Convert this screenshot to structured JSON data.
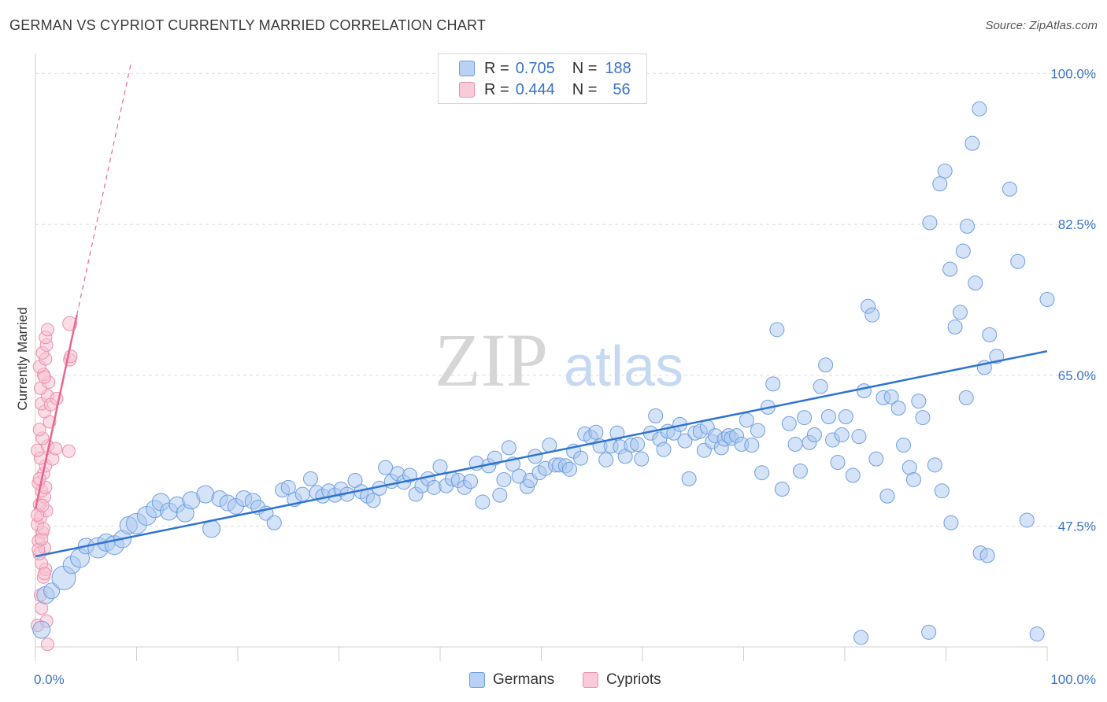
{
  "header": {
    "title": "GERMAN VS CYPRIOT CURRENTLY MARRIED CORRELATION CHART",
    "source": "Source: ZipAtlas.com"
  },
  "watermark": {
    "part1": "ZIP",
    "part2": "atlas"
  },
  "legend_top": {
    "rows": [
      {
        "r_label": "R =",
        "r_value": "0.705",
        "n_label": "N =",
        "n_value": "188"
      },
      {
        "r_label": "R =",
        "r_value": "0.444",
        "n_label": "N =",
        "n_value": "56"
      }
    ]
  },
  "legend_bottom": {
    "germans": "Germans",
    "cypriots": "Cypriots"
  },
  "colors": {
    "blue_fill": "#a9c8f0",
    "blue_stroke": "#6f9fe0",
    "blue_line": "#2f74d0",
    "pink_fill": "#f8c1d2",
    "pink_stroke": "#ec8eab",
    "pink_line": "#e7678f",
    "axis_label": "#3a74c9"
  },
  "chart_data": {
    "type": "scatter",
    "title": "GERMAN VS CYPRIOT CURRENTLY MARRIED CORRELATION CHART",
    "xlabel": "",
    "ylabel": "Currently Married",
    "xlim": [
      0,
      100
    ],
    "ylim": [
      33.5,
      101.5
    ],
    "x_tick_labels": [
      "0.0%",
      "100.0%"
    ],
    "y_ticks": [
      47.5,
      65.0,
      82.5,
      100.0
    ],
    "y_tick_labels": [
      "47.5%",
      "65.0%",
      "82.5%",
      "100.0%"
    ],
    "grid": true,
    "series": [
      {
        "name": "Germans",
        "R": 0.705,
        "N": 188,
        "trend": {
          "x": [
            0,
            100
          ],
          "y": [
            44.0,
            67.8
          ]
        },
        "points": [
          [
            0.6,
            35.5,
            11
          ],
          [
            1.0,
            39.5,
            11
          ],
          [
            1.6,
            40.0,
            10
          ],
          [
            2.8,
            41.5,
            15
          ],
          [
            3.6,
            43.0,
            11
          ],
          [
            4.4,
            43.8,
            12
          ],
          [
            5.0,
            45.2,
            10
          ],
          [
            6.2,
            45.0,
            13
          ],
          [
            7.0,
            45.6,
            11
          ],
          [
            7.8,
            45.3,
            12
          ],
          [
            8.6,
            46.0,
            11
          ],
          [
            9.2,
            47.6,
            11
          ],
          [
            10.0,
            47.8,
            13
          ],
          [
            11.0,
            48.7,
            12
          ],
          [
            11.8,
            49.5,
            11
          ],
          [
            12.4,
            50.3,
            11
          ],
          [
            13.2,
            49.2,
            11
          ],
          [
            14.0,
            50.0,
            10
          ],
          [
            14.8,
            49.0,
            11
          ],
          [
            15.4,
            50.5,
            11
          ],
          [
            16.8,
            51.2,
            11
          ],
          [
            17.4,
            47.2,
            11
          ],
          [
            18.2,
            50.7,
            10
          ],
          [
            19.0,
            50.2,
            10
          ],
          [
            19.8,
            49.8,
            10
          ],
          [
            20.6,
            50.7,
            10
          ],
          [
            21.5,
            50.4,
            10
          ],
          [
            22.0,
            49.7,
            9
          ],
          [
            22.8,
            49.0,
            9
          ],
          [
            23.6,
            47.9,
            9
          ],
          [
            24.4,
            51.7,
            9
          ],
          [
            25.0,
            52.0,
            9
          ],
          [
            25.6,
            50.6,
            9
          ],
          [
            26.4,
            51.2,
            9
          ],
          [
            27.2,
            53.0,
            9
          ],
          [
            27.8,
            51.4,
            9
          ],
          [
            28.4,
            51.0,
            9
          ],
          [
            29.0,
            51.6,
            9
          ],
          [
            29.6,
            51.1,
            9
          ],
          [
            30.2,
            51.8,
            9
          ],
          [
            30.8,
            51.2,
            9
          ],
          [
            31.6,
            52.8,
            9
          ],
          [
            32.2,
            51.5,
            9
          ],
          [
            32.8,
            51.0,
            9
          ],
          [
            33.4,
            50.5,
            9
          ],
          [
            34.0,
            51.9,
            9
          ],
          [
            34.6,
            54.3,
            9
          ],
          [
            35.2,
            52.7,
            9
          ],
          [
            35.8,
            53.6,
            9
          ],
          [
            36.4,
            52.6,
            9
          ],
          [
            37.0,
            53.4,
            9
          ],
          [
            37.6,
            51.2,
            9
          ],
          [
            38.2,
            52.2,
            9
          ],
          [
            38.8,
            53.0,
            9
          ],
          [
            39.4,
            52.0,
            9
          ],
          [
            40.0,
            54.4,
            9
          ],
          [
            40.6,
            52.2,
            9
          ],
          [
            41.2,
            53.0,
            9
          ],
          [
            41.8,
            52.8,
            9
          ],
          [
            42.4,
            52.0,
            9
          ],
          [
            43.0,
            52.7,
            9
          ],
          [
            43.6,
            54.8,
            9
          ],
          [
            44.2,
            50.3,
            9
          ],
          [
            44.8,
            54.5,
            9
          ],
          [
            45.4,
            55.4,
            9
          ],
          [
            45.9,
            51.1,
            9
          ],
          [
            46.3,
            52.9,
            9
          ],
          [
            46.8,
            56.6,
            9
          ],
          [
            47.2,
            54.7,
            9
          ],
          [
            47.8,
            53.3,
            9
          ],
          [
            48.6,
            52.1,
            9
          ],
          [
            48.9,
            52.8,
            9
          ],
          [
            49.4,
            55.6,
            9
          ],
          [
            49.8,
            53.7,
            9
          ],
          [
            50.4,
            54.2,
            9
          ],
          [
            50.8,
            56.9,
            9
          ],
          [
            51.4,
            54.6,
            9
          ],
          [
            51.8,
            54.6,
            9
          ],
          [
            52.4,
            54.5,
            9
          ],
          [
            52.8,
            54.1,
            9
          ],
          [
            53.2,
            56.2,
            9
          ],
          [
            53.9,
            55.4,
            9
          ],
          [
            54.3,
            58.2,
            9
          ],
          [
            54.9,
            57.8,
            9
          ],
          [
            55.4,
            58.4,
            9
          ],
          [
            55.8,
            56.8,
            9
          ],
          [
            56.4,
            55.2,
            9
          ],
          [
            56.9,
            56.8,
            9
          ],
          [
            57.5,
            58.3,
            9
          ],
          [
            57.8,
            56.7,
            9
          ],
          [
            58.3,
            55.6,
            9
          ],
          [
            58.9,
            56.9,
            9
          ],
          [
            59.5,
            57.0,
            9
          ],
          [
            59.9,
            55.3,
            9
          ],
          [
            60.8,
            58.3,
            9
          ],
          [
            61.3,
            60.3,
            9
          ],
          [
            61.7,
            57.6,
            9
          ],
          [
            62.1,
            56.4,
            9
          ],
          [
            62.5,
            58.5,
            9
          ],
          [
            63.1,
            58.3,
            9
          ],
          [
            63.7,
            59.3,
            9
          ],
          [
            64.2,
            57.4,
            9
          ],
          [
            64.6,
            53.0,
            9
          ],
          [
            65.2,
            58.3,
            9
          ],
          [
            65.7,
            58.5,
            9
          ],
          [
            66.1,
            56.3,
            9
          ],
          [
            66.4,
            59.0,
            9
          ],
          [
            66.9,
            57.3,
            9
          ],
          [
            67.2,
            58.0,
            9
          ],
          [
            67.8,
            56.6,
            9
          ],
          [
            68.1,
            57.6,
            9
          ],
          [
            68.5,
            58.0,
            9
          ],
          [
            68.8,
            57.7,
            9
          ],
          [
            69.3,
            58.0,
            9
          ],
          [
            69.8,
            57.0,
            9
          ],
          [
            70.3,
            59.8,
            9
          ],
          [
            70.8,
            56.9,
            9
          ],
          [
            71.4,
            58.6,
            9
          ],
          [
            71.8,
            53.7,
            9
          ],
          [
            72.4,
            61.3,
            9
          ],
          [
            72.9,
            64.0,
            9
          ],
          [
            73.3,
            70.3,
            9
          ],
          [
            73.8,
            51.8,
            9
          ],
          [
            74.5,
            59.4,
            9
          ],
          [
            75.1,
            57.0,
            9
          ],
          [
            75.6,
            53.9,
            9
          ],
          [
            76.0,
            60.1,
            9
          ],
          [
            76.5,
            57.2,
            9
          ],
          [
            77.0,
            58.1,
            9
          ],
          [
            77.6,
            63.7,
            9
          ],
          [
            78.1,
            66.2,
            9
          ],
          [
            78.4,
            60.2,
            9
          ],
          [
            78.8,
            57.5,
            9
          ],
          [
            79.3,
            54.9,
            9
          ],
          [
            79.7,
            58.1,
            9
          ],
          [
            80.1,
            60.2,
            9
          ],
          [
            80.8,
            53.4,
            9
          ],
          [
            81.4,
            57.9,
            9
          ],
          [
            81.9,
            63.2,
            9
          ],
          [
            82.3,
            73.0,
            9
          ],
          [
            82.7,
            72.0,
            9
          ],
          [
            83.1,
            55.3,
            9
          ],
          [
            83.8,
            62.4,
            9
          ],
          [
            84.2,
            51.0,
            9
          ],
          [
            84.6,
            62.5,
            9
          ],
          [
            85.3,
            61.2,
            9
          ],
          [
            85.8,
            56.9,
            9
          ],
          [
            86.4,
            54.3,
            9
          ],
          [
            86.8,
            52.9,
            9
          ],
          [
            87.3,
            62.0,
            9
          ],
          [
            87.7,
            60.1,
            9
          ],
          [
            88.4,
            82.7,
            9
          ],
          [
            88.9,
            54.6,
            9
          ],
          [
            89.4,
            87.2,
            9
          ],
          [
            89.9,
            88.7,
            9
          ],
          [
            90.4,
            77.3,
            9
          ],
          [
            90.9,
            70.6,
            9
          ],
          [
            91.4,
            72.3,
            9
          ],
          [
            91.7,
            79.4,
            9
          ],
          [
            92.1,
            82.3,
            9
          ],
          [
            92.6,
            91.9,
            9
          ],
          [
            92.9,
            75.7,
            9
          ],
          [
            93.3,
            95.9,
            9
          ],
          [
            93.8,
            65.9,
            9
          ],
          [
            94.3,
            69.7,
            9
          ],
          [
            95.0,
            67.2,
            9
          ],
          [
            96.3,
            86.6,
            9
          ],
          [
            97.1,
            78.2,
            9
          ],
          [
            98.0,
            48.2,
            9
          ],
          [
            99.0,
            35.0,
            9
          ],
          [
            100.0,
            73.8,
            9
          ],
          [
            93.4,
            44.4,
            9
          ],
          [
            94.1,
            44.1,
            9
          ],
          [
            81.6,
            34.6,
            9
          ],
          [
            88.3,
            35.2,
            9
          ],
          [
            90.5,
            47.9,
            9
          ],
          [
            89.6,
            51.6,
            9
          ],
          [
            92.0,
            62.4,
            9
          ]
        ]
      },
      {
        "name": "Cypriots",
        "R": 0.444,
        "N": 56,
        "trend": {
          "x": [
            0,
            4.1
          ],
          "y": [
            49.5,
            72.0
          ]
        },
        "trend_extension": {
          "x": [
            4.1,
            9.5
          ],
          "y": [
            72.0,
            101.5
          ]
        },
        "points": [
          [
            0.2,
            36.0,
            8
          ],
          [
            0.5,
            39.5,
            8
          ],
          [
            0.8,
            41.6,
            8
          ],
          [
            1.0,
            42.5,
            8
          ],
          [
            0.6,
            43.2,
            8
          ],
          [
            0.4,
            44.3,
            8
          ],
          [
            0.9,
            45.0,
            8
          ],
          [
            0.3,
            45.8,
            8
          ],
          [
            0.7,
            46.8,
            8
          ],
          [
            0.2,
            47.7,
            8
          ],
          [
            0.5,
            48.5,
            8
          ],
          [
            1.1,
            49.3,
            8
          ],
          [
            0.4,
            50.0,
            8
          ],
          [
            0.9,
            50.9,
            8
          ],
          [
            0.6,
            51.6,
            8
          ],
          [
            0.3,
            52.5,
            8
          ],
          [
            0.8,
            53.6,
            8
          ],
          [
            1.0,
            54.5,
            8
          ],
          [
            0.5,
            55.4,
            8
          ],
          [
            0.2,
            56.3,
            8
          ],
          [
            1.2,
            56.8,
            8
          ],
          [
            0.7,
            57.7,
            8
          ],
          [
            0.4,
            58.7,
            8
          ],
          [
            1.4,
            59.6,
            8
          ],
          [
            0.9,
            60.8,
            8
          ],
          [
            0.6,
            61.7,
            8
          ],
          [
            1.2,
            62.6,
            8
          ],
          [
            0.5,
            63.5,
            8
          ],
          [
            1.3,
            64.2,
            8
          ],
          [
            0.8,
            65.1,
            8
          ],
          [
            0.4,
            66.0,
            8
          ],
          [
            1.0,
            66.9,
            8
          ],
          [
            0.7,
            67.6,
            8
          ],
          [
            1.1,
            68.5,
            8
          ],
          [
            1.0,
            69.4,
            8
          ],
          [
            1.2,
            70.3,
            8
          ],
          [
            1.5,
            61.6,
            8
          ],
          [
            1.7,
            55.3,
            8
          ],
          [
            2.0,
            56.5,
            8
          ],
          [
            2.1,
            62.3,
            8
          ],
          [
            3.3,
            56.2,
            8
          ],
          [
            3.4,
            66.8,
            8
          ],
          [
            3.5,
            67.2,
            8
          ],
          [
            3.4,
            71.0,
            9
          ],
          [
            1.2,
            33.8,
            8
          ],
          [
            1.1,
            36.5,
            8
          ],
          [
            0.6,
            38.0,
            8
          ],
          [
            0.9,
            42.0,
            8
          ],
          [
            0.3,
            44.8,
            8
          ],
          [
            0.6,
            46.0,
            8
          ],
          [
            0.8,
            47.2,
            8
          ],
          [
            0.2,
            48.8,
            8
          ],
          [
            0.7,
            49.9,
            8
          ],
          [
            1.0,
            52.0,
            8
          ],
          [
            0.4,
            53.0,
            8
          ],
          [
            0.9,
            64.8,
            8
          ]
        ]
      }
    ]
  }
}
